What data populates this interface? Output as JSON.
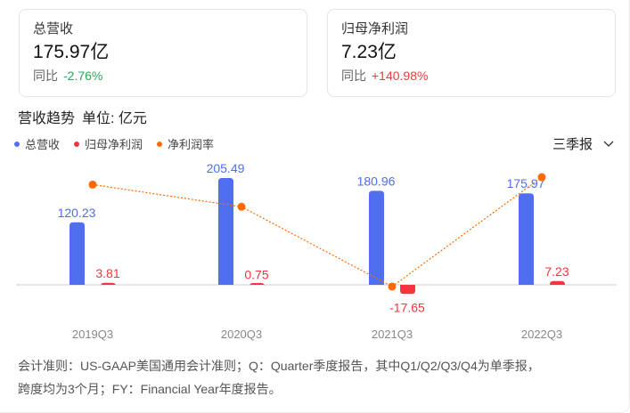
{
  "cards": [
    {
      "title": "总营收",
      "value": "175.97亿",
      "yoy_label": "同比",
      "yoy": "-2.76%",
      "yoy_color": "#2aa55a"
    },
    {
      "title": "归母净利润",
      "value": "7.23亿",
      "yoy_label": "同比",
      "yoy": "+140.98%",
      "yoy_color": "#f03a3a"
    }
  ],
  "section": {
    "title": "营收趋势",
    "unit": "单位: 亿元"
  },
  "period_select": {
    "value": "三季报"
  },
  "colors": {
    "revenue": "#4f6ef0",
    "profit": "#f5343f",
    "margin": "#ff6a00"
  },
  "chart_data": {
    "type": "bar",
    "categories": [
      "2019Q3",
      "2020Q3",
      "2021Q3",
      "2022Q3"
    ],
    "series": [
      {
        "name": "总营收",
        "type": "bar",
        "values": [
          120.23,
          205.49,
          180.96,
          175.97
        ],
        "labels": [
          "120.23",
          "205.49",
          "180.96",
          "175.97"
        ]
      },
      {
        "name": "归母净利润",
        "type": "bar",
        "values": [
          3.81,
          0.75,
          -17.65,
          7.23
        ],
        "labels": [
          "3.81",
          "0.75",
          "-17.65",
          "7.23"
        ]
      },
      {
        "name": "净利润率",
        "type": "line",
        "values": [
          3.17,
          0.36,
          -9.75,
          4.11
        ],
        "unit": "%"
      }
    ],
    "legend": "top-left",
    "grid": false
  },
  "footnote": {
    "line1": "会计准则：US-GAAP美国通用会计准则；Q：Quarter季度报告，其中Q1/Q2/Q3/Q4为单季报，",
    "line2": "跨度均为3个月；FY：Financial Year年度报告。"
  }
}
